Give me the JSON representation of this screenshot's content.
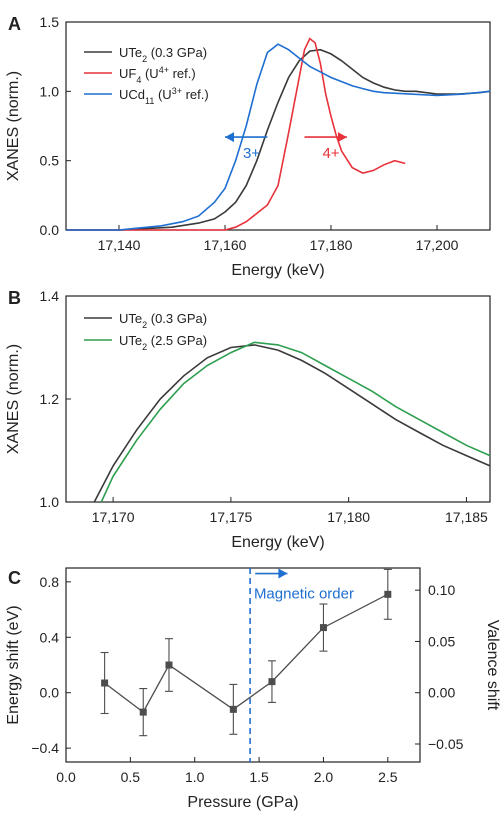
{
  "colors": {
    "black_series": "#3a3a3a",
    "red_series": "#e8313a",
    "blue_series": "#1f6fd1",
    "green_series": "#2e9e4f",
    "dashed_line": "#1f6fd1",
    "markers": "#4d4d4d"
  },
  "chart_data": [
    {
      "panel": "A",
      "type": "line",
      "xlabel": "Energy (keV)",
      "ylabel": "XANES (norm.)",
      "xlim": [
        17130,
        17210
      ],
      "ylim": [
        0,
        1.5
      ],
      "xticks": [
        17140,
        17160,
        17180,
        17200
      ],
      "xtick_labels": [
        "17,140",
        "17,160",
        "17,180",
        "17,200"
      ],
      "yticks": [
        0,
        0.5,
        1.0,
        1.5
      ],
      "ytick_labels": [
        "0.0",
        "0.5",
        "1.0",
        "1.5"
      ],
      "legend_position": "top-left",
      "series": [
        {
          "name": "UTe2 (0.3 GPa)",
          "legend_main": "UTe",
          "legend_sub": "2",
          "legend_rest": " (0.3 GPa)",
          "color_key": "black_series",
          "x": [
            17130,
            17140,
            17150,
            17155,
            17158,
            17160,
            17162,
            17164,
            17166,
            17168,
            17170,
            17172,
            17174,
            17176,
            17178,
            17180,
            17182,
            17184,
            17186,
            17188,
            17190,
            17192,
            17194,
            17196,
            17198,
            17200,
            17204,
            17208,
            17210
          ],
          "y": [
            0.0,
            0.0,
            0.02,
            0.05,
            0.08,
            0.13,
            0.2,
            0.32,
            0.5,
            0.72,
            0.92,
            1.1,
            1.22,
            1.29,
            1.3,
            1.27,
            1.22,
            1.16,
            1.1,
            1.06,
            1.03,
            1.01,
            1.0,
            1.0,
            0.99,
            0.98,
            0.98,
            0.99,
            1.0
          ]
        },
        {
          "name": "UF4 (U4+ ref.)",
          "legend_main": "UF",
          "legend_sub": "4",
          "legend_mid": " (U",
          "legend_sup": "4+",
          "legend_rest": " ref.)",
          "color_key": "red_series",
          "x": [
            17130,
            17150,
            17160,
            17162,
            17164,
            17166,
            17168,
            17170,
            17172,
            17174,
            17175,
            17176,
            17177,
            17178,
            17179,
            17180,
            17181,
            17182,
            17184,
            17186,
            17188,
            17190,
            17192,
            17194
          ],
          "y": [
            0.0,
            0.0,
            0.0,
            0.02,
            0.06,
            0.12,
            0.18,
            0.32,
            0.7,
            1.1,
            1.3,
            1.38,
            1.35,
            1.2,
            0.98,
            0.82,
            0.68,
            0.57,
            0.45,
            0.41,
            0.43,
            0.47,
            0.5,
            0.48
          ]
        },
        {
          "name": "UCd11 (U3+ ref.)",
          "legend_main": "UCd",
          "legend_sub": "11",
          "legend_mid": " (U",
          "legend_sup": "3+",
          "legend_rest": " ref.)",
          "color_key": "blue_series",
          "x": [
            17130,
            17140,
            17148,
            17152,
            17155,
            17158,
            17160,
            17162,
            17164,
            17166,
            17168,
            17170,
            17172,
            17174,
            17176,
            17178,
            17180,
            17182,
            17184,
            17186,
            17188,
            17190,
            17195,
            17200,
            17205,
            17210
          ],
          "y": [
            0.0,
            0.0,
            0.03,
            0.06,
            0.1,
            0.2,
            0.3,
            0.5,
            0.75,
            1.05,
            1.28,
            1.34,
            1.3,
            1.24,
            1.18,
            1.14,
            1.1,
            1.07,
            1.04,
            1.02,
            1.0,
            0.99,
            0.98,
            0.97,
            0.98,
            1.0
          ]
        }
      ],
      "annotations": [
        {
          "text": "3+",
          "x": 17165,
          "y": 0.52,
          "color_key": "blue_series",
          "arrow": {
            "x1": 17168,
            "x2": 17160,
            "y": 0.67
          }
        },
        {
          "text": "4+",
          "x": 17180,
          "y": 0.52,
          "color_key": "red_series",
          "arrow": {
            "x1": 17175,
            "x2": 17183,
            "y": 0.67
          }
        }
      ]
    },
    {
      "panel": "B",
      "type": "line",
      "xlabel": "Energy (keV)",
      "ylabel": "XANES (norm.)",
      "xlim": [
        17168,
        17186
      ],
      "ylim": [
        1.0,
        1.4
      ],
      "xticks": [
        17170,
        17175,
        17180,
        17185
      ],
      "xtick_labels": [
        "17,170",
        "17,175",
        "17,180",
        "17,185"
      ],
      "yticks": [
        1.0,
        1.2,
        1.4
      ],
      "ytick_labels": [
        "1.0",
        "1.2",
        "1.4"
      ],
      "legend_position": "top-left",
      "series": [
        {
          "name": "UTe2 (0.3 GPa)",
          "legend_main": "UTe",
          "legend_sub": "2",
          "legend_rest": " (0.3 GPa)",
          "color_key": "black_series",
          "x": [
            17169.2,
            17170,
            17171,
            17172,
            17173,
            17174,
            17175,
            17176,
            17177,
            17178,
            17179,
            17180,
            17181,
            17182,
            17183,
            17184,
            17185,
            17186
          ],
          "y": [
            1.0,
            1.07,
            1.14,
            1.2,
            1.245,
            1.28,
            1.3,
            1.305,
            1.295,
            1.275,
            1.25,
            1.22,
            1.19,
            1.16,
            1.135,
            1.11,
            1.09,
            1.07
          ]
        },
        {
          "name": "UTe2 (2.5 GPa)",
          "legend_main": "UTe",
          "legend_sub": "2",
          "legend_rest": " (2.5 GPa)",
          "color_key": "green_series",
          "x": [
            17169.5,
            17170,
            17171,
            17172,
            17173,
            17174,
            17175,
            17176,
            17177,
            17178,
            17179,
            17180,
            17181,
            17182,
            17183,
            17184,
            17185,
            17186
          ],
          "y": [
            1.0,
            1.05,
            1.12,
            1.18,
            1.23,
            1.265,
            1.29,
            1.31,
            1.305,
            1.29,
            1.265,
            1.24,
            1.215,
            1.185,
            1.16,
            1.135,
            1.11,
            1.09
          ]
        }
      ]
    },
    {
      "panel": "C",
      "type": "scatter",
      "xlabel": "Pressure (GPa)",
      "ylabel": "Energy shift (eV)",
      "ylabel_right": "Valence shift",
      "xlim": [
        0,
        2.75
      ],
      "ylim": [
        -0.5,
        0.9
      ],
      "xticks": [
        0,
        0.5,
        1.0,
        1.5,
        2.0,
        2.5
      ],
      "xtick_labels": [
        "0.0",
        "0.5",
        "1.0",
        "1.5",
        "2.0",
        "2.5"
      ],
      "yticks": [
        -0.4,
        0.0,
        0.4,
        0.8
      ],
      "ytick_labels": [
        "−0.4",
        "0.0",
        "0.4",
        "0.8"
      ],
      "right_yticks": [
        -0.05,
        0.0,
        0.05,
        0.1
      ],
      "right_ytick_labels": [
        "−0.05",
        "0.00",
        "0.05",
        "0.10"
      ],
      "right_ytick_positions": [
        -0.37,
        0.0,
        0.37,
        0.74
      ],
      "x": [
        0.3,
        0.6,
        0.8,
        1.3,
        1.6,
        2.0,
        2.5
      ],
      "y": [
        0.07,
        -0.14,
        0.2,
        -0.12,
        0.08,
        0.47,
        0.71
      ],
      "yerr": [
        0.22,
        0.17,
        0.19,
        0.18,
        0.15,
        0.17,
        0.18
      ],
      "vline_x": 1.43,
      "annotation": {
        "text": "Magnetic order",
        "x": 1.46,
        "y": 0.68,
        "arrow": {
          "x1": 1.47,
          "x2": 1.72,
          "y": 0.86
        }
      }
    }
  ]
}
